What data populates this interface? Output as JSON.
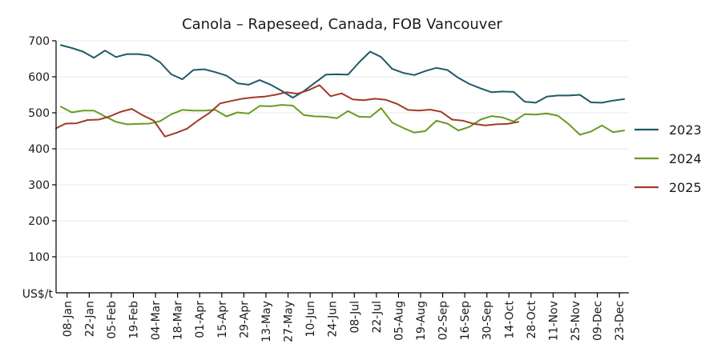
{
  "chart_data": {
    "type": "line",
    "title": "Canola – Rapeseed, Canada, FOB Vancouver",
    "ylabel": "US$/t",
    "xlabel": "",
    "ylim": [
      0,
      700
    ],
    "yticks": [
      100,
      200,
      300,
      400,
      500,
      600,
      700
    ],
    "grid": "horizontal",
    "legend_position": "right",
    "x_tick_labels": [
      "08-Jan",
      "22-Jan",
      "05-Feb",
      "19-Feb",
      "04-Mar",
      "18-Mar",
      "01-Apr",
      "15-Apr",
      "29-Apr",
      "13-May",
      "27-May",
      "10-Jun",
      "24-Jun",
      "08-Jul",
      "22-Jul",
      "05-Aug",
      "19-Aug",
      "02-Sep",
      "16-Sep",
      "30-Sep",
      "14-Oct",
      "28-Oct",
      "11-Nov",
      "25-Nov",
      "09-Dec",
      "23-Dec"
    ],
    "x_tick_days": [
      7,
      21,
      35,
      49,
      63,
      77,
      91,
      105,
      119,
      133,
      147,
      161,
      175,
      189,
      203,
      217,
      231,
      245,
      259,
      273,
      287,
      301,
      315,
      329,
      343,
      357
    ],
    "x_day_range": [
      0,
      363
    ],
    "series": [
      {
        "name": "2023",
        "color": "#1f5a66",
        "days": [
          3,
          10,
          17,
          24,
          31,
          38,
          45,
          52,
          59,
          66,
          73,
          80,
          87,
          94,
          101,
          108,
          115,
          122,
          129,
          136,
          143,
          150,
          157,
          164,
          171,
          178,
          185,
          192,
          199,
          206,
          213,
          220,
          227,
          234,
          241,
          248,
          255,
          262,
          269,
          276,
          283,
          290,
          297,
          304,
          311,
          318,
          325,
          332,
          339,
          346,
          353,
          360
        ],
        "values": [
          688,
          680,
          670,
          653,
          673,
          655,
          663,
          663,
          659,
          640,
          607,
          593,
          619,
          621,
          613,
          603,
          582,
          578,
          591,
          578,
          561,
          542,
          560,
          583,
          606,
          607,
          606,
          640,
          670,
          655,
          622,
          611,
          605,
          616,
          625,
          619,
          597,
          580,
          568,
          557,
          559,
          558,
          531,
          528,
          545,
          548,
          548,
          550,
          529,
          528,
          534,
          538
        ]
      },
      {
        "name": "2024",
        "color": "#6a9a23",
        "days": [
          3,
          10,
          17,
          24,
          31,
          38,
          45,
          52,
          59,
          66,
          73,
          80,
          87,
          94,
          101,
          108,
          115,
          122,
          129,
          136,
          143,
          150,
          157,
          164,
          171,
          178,
          185,
          192,
          199,
          206,
          213,
          220,
          227,
          234,
          241,
          248,
          255,
          262,
          269,
          276,
          283,
          290,
          297,
          304,
          311,
          318,
          325,
          332,
          339,
          346,
          353,
          360
        ],
        "values": [
          517,
          501,
          506,
          506,
          490,
          475,
          468,
          469,
          470,
          477,
          496,
          508,
          506,
          506,
          508,
          490,
          501,
          498,
          519,
          518,
          522,
          520,
          494,
          490,
          489,
          485,
          505,
          489,
          488,
          513,
          473,
          458,
          445,
          449,
          478,
          470,
          451,
          461,
          481,
          491,
          487,
          476,
          496,
          495,
          498,
          492,
          468,
          439,
          448,
          465,
          446,
          451
        ]
      },
      {
        "name": "2025",
        "color": "#a03a28",
        "days": [
          0,
          6,
          13,
          20,
          27,
          34,
          41,
          48,
          55,
          62,
          69,
          76,
          83,
          90,
          97,
          104,
          111,
          118,
          125,
          132,
          139,
          146,
          153,
          160,
          167,
          174,
          181,
          188,
          195,
          202,
          209,
          216,
          223,
          230,
          237,
          244,
          251,
          258,
          265,
          272,
          279,
          286,
          293
        ],
        "values": [
          457,
          470,
          471,
          480,
          481,
          490,
          503,
          511,
          493,
          478,
          434,
          444,
          456,
          479,
          499,
          526,
          533,
          539,
          543,
          545,
          550,
          557,
          553,
          563,
          577,
          546,
          554,
          537,
          535,
          539,
          536,
          525,
          508,
          506,
          509,
          503,
          481,
          478,
          469,
          465,
          468,
          469,
          475
        ]
      }
    ]
  }
}
